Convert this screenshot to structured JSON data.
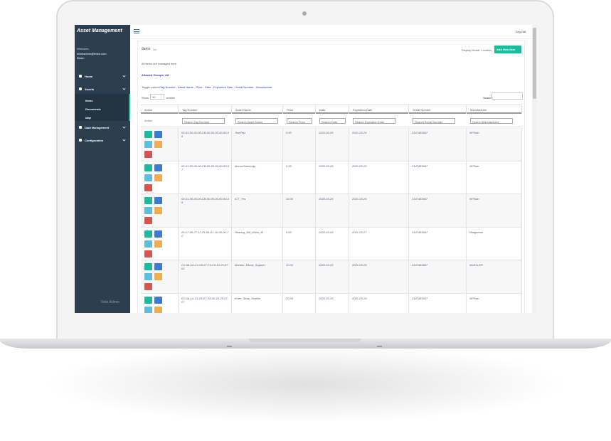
{
  "sidebar": {
    "title": "Asset Management",
    "welcome": "Welcome,",
    "email": "ntrahadmin@trtain.com",
    "org": "Btrain",
    "menu": [
      {
        "label": "Home"
      },
      {
        "label": "Assets"
      },
      {
        "label": "Items"
      },
      {
        "label": "Documents"
      },
      {
        "label": "Map"
      },
      {
        "label": "Data Management"
      },
      {
        "label": "Configuration"
      }
    ],
    "role": "Role:Admin"
  },
  "header": {
    "logout": "Log Out"
  },
  "content": {
    "title": "Items",
    "subtitle": "list",
    "display_modal": "Display Modal: Location",
    "add_button": "Add New Item",
    "description": "All items are managed here.",
    "groups": "Allowed Groups: All",
    "toggle_label": "Toggle column:",
    "toggle_links": "Tag Number - Asset Name - Price - Date - Expiration Date - Serial Number - Manufacture",
    "show": "Show",
    "page_size": "10",
    "entries": "entries",
    "search": "Search:"
  },
  "table": {
    "columns": [
      "Action",
      "Tag Number",
      "Asset Name",
      "Price",
      "Date",
      "Expiration Date",
      "Serial Number",
      "Manufacturer"
    ],
    "filter_action": "Action",
    "filters": [
      "Search Tag Number",
      "Search Asset Name",
      "Search Price",
      "Search Date",
      "Search Expiration Date",
      "Search Serial Number",
      "Search Manufacturer"
    ],
    "rows": [
      [
        "00-01-00-00-06-CB-00-00-00-00-00-06",
        "TestTest",
        "0.00",
        "2020-03-26",
        "2021-03-24",
        "2147483647",
        "NFRain"
      ],
      [
        "00-01-00-00-06-CB-00-00-00-00-00-07",
        "MouseSamsung",
        "0.00",
        "2020-03-26",
        "2021-03-25",
        "2147483647",
        "NFRain"
      ],
      [
        "00-01-00-00-06-CB-00-00-00-00-00-09",
        "ICT_Yes",
        "10.00",
        "2020-03-26",
        "2021-03-26",
        "2147483647",
        "NFRain"
      ],
      [
        "20-17-06-27-12-25-0A-01-10-00-00-7C",
        "Hearing_Aid_Mono_M",
        "0.00",
        "2020-03-26",
        "2021-03-27",
        "2147483647",
        "Walgreens"
      ],
      [
        "C2-0A-1A-C1-05-07-F4-C0-10-25-07-0C",
        "Monitor_Elbow_Support",
        "10.00",
        "2020-03-26",
        "2021-03-28",
        "2147483647",
        "MUELLER"
      ],
      [
        "E2-0A-1A-C1-05-07-FA-00-10-25-07-07",
        "Knee_Strap_Mueller",
        "20.00",
        "2020-03-26",
        "2021-03-29",
        "2147483647",
        "NFRain"
      ]
    ]
  }
}
